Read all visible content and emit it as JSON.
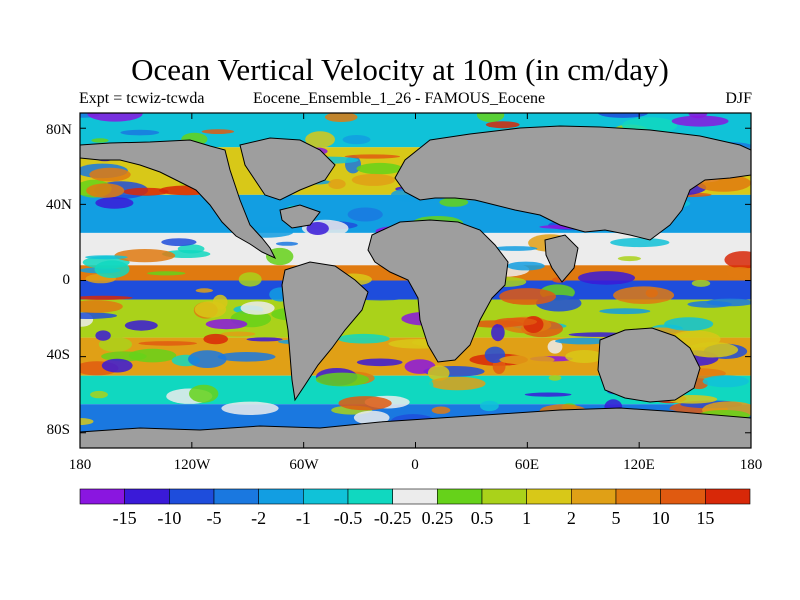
{
  "title": "Ocean Vertical Velocity at 10m (in cm/day)",
  "subtitle_left": "Expt = tcwiz-tcwda",
  "subtitle_center": "Eocene_Ensemble_1_26 - FAMOUS_Eocene",
  "subtitle_right": "DJF",
  "y_ticks": [
    "80N",
    "40N",
    "0",
    "40S",
    "80S"
  ],
  "x_ticks": [
    "180",
    "120W",
    "60W",
    "0",
    "60E",
    "120E",
    "180"
  ],
  "colorbar": {
    "labels": [
      "-15",
      "-10",
      "-5",
      "-2",
      "-1",
      "-0.5",
      "-0.25",
      "0.25",
      "0.5",
      "1",
      "2",
      "5",
      "10",
      "15"
    ],
    "colors": [
      "#8a16e0",
      "#3a1ad8",
      "#1e4ddc",
      "#1a78e0",
      "#129ee2",
      "#10c2d8",
      "#10d8c0",
      "#ececec",
      "#66d21a",
      "#aad21a",
      "#d8c818",
      "#e0a016",
      "#e07a10",
      "#e05a10",
      "#d82808"
    ]
  },
  "map": {
    "land_color": "#9e9e9e",
    "ocean_zones": [
      {
        "name": "arctic",
        "lat": [
          70,
          88
        ],
        "color": "#10c2d8"
      },
      {
        "name": "north-subpolar",
        "lat": [
          45,
          70
        ],
        "color": "#d8c818"
      },
      {
        "name": "north-midlat",
        "lat": [
          25,
          45
        ],
        "color": "#129ee2"
      },
      {
        "name": "north-subtropic",
        "lat": [
          8,
          25
        ],
        "color": "#ececec"
      },
      {
        "name": "equator-north",
        "lat": [
          0,
          8
        ],
        "color": "#e07a10"
      },
      {
        "name": "equator-south",
        "lat": [
          -10,
          0
        ],
        "color": "#1e4ddc"
      },
      {
        "name": "south-subtropic",
        "lat": [
          -30,
          -10
        ],
        "color": "#aad21a"
      },
      {
        "name": "south-midlat",
        "lat": [
          -50,
          -30
        ],
        "color": "#e0a016"
      },
      {
        "name": "southern-ocean",
        "lat": [
          -65,
          -50
        ],
        "color": "#10d8c0"
      },
      {
        "name": "antarctic-margin",
        "lat": [
          -88,
          -65
        ],
        "color": "#1a78e0"
      }
    ]
  }
}
